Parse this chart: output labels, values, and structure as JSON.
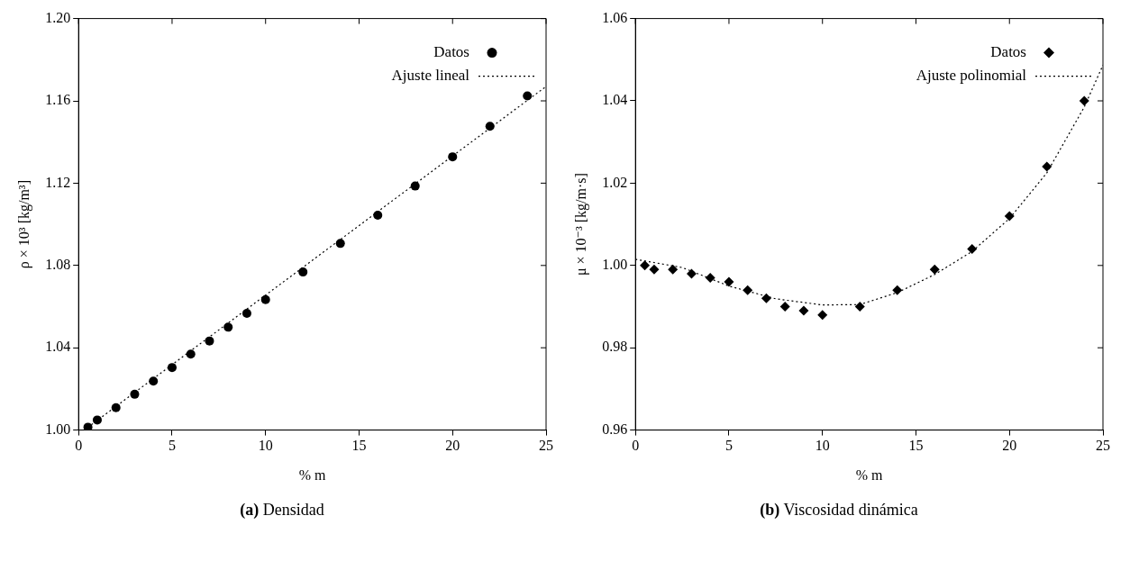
{
  "chart_data": [
    {
      "type": "scatter",
      "title": "(a) Densidad",
      "xlabel": "% m",
      "ylabel": "ρ × 10³ [kg/m³]",
      "xlim": [
        0,
        25
      ],
      "xticks": [
        0,
        5,
        10,
        15,
        20,
        25
      ],
      "ylim": [
        1.0,
        1.2
      ],
      "yticks": [
        {
          "value": 1.0,
          "label": "1.00"
        },
        {
          "value": 1.04,
          "label": "1.04"
        },
        {
          "value": 1.08,
          "label": "1.08"
        },
        {
          "value": 1.12,
          "label": "1.12"
        },
        {
          "value": 1.16,
          "label": "1.16"
        },
        {
          "value": 1.2,
          "label": "1.20"
        }
      ],
      "grid": false,
      "legend": "top right",
      "series": [
        {
          "name": "Datos",
          "type": "scatter",
          "marker": "circle",
          "color": "#000000",
          "x": [
            0.5,
            1,
            2,
            3,
            4,
            5,
            6,
            7,
            8,
            9,
            10,
            12,
            14,
            16,
            18,
            20,
            22,
            24
          ],
          "values": [
            1.0014,
            1.0049,
            1.0109,
            1.0174,
            1.0238,
            1.0304,
            1.0369,
            1.0433,
            1.05,
            1.0567,
            1.0634,
            1.0768,
            1.0907,
            1.1044,
            1.1186,
            1.1328,
            1.1476,
            1.1624
          ]
        },
        {
          "name": "Ajuste lineal",
          "type": "line",
          "marker": "none",
          "line_style": "dotted",
          "color": "#000000",
          "x": [
            0.3,
            25
          ],
          "values": [
            1.0,
            1.167
          ]
        }
      ]
    },
    {
      "type": "scatter",
      "title": "(b) Viscosidad dinámica",
      "xlabel": "% m",
      "ylabel": "μ × 10⁻³ [kg/m·s]",
      "xlim": [
        0,
        25
      ],
      "xticks": [
        0,
        5,
        10,
        15,
        20,
        25
      ],
      "ylim": [
        0.96,
        1.06
      ],
      "yticks": [
        {
          "value": 0.96,
          "label": "0.96"
        },
        {
          "value": 0.98,
          "label": "0.98"
        },
        {
          "value": 1.0,
          "label": "1.00"
        },
        {
          "value": 1.02,
          "label": "1.02"
        },
        {
          "value": 1.04,
          "label": "1.04"
        },
        {
          "value": 1.06,
          "label": "1.06"
        }
      ],
      "grid": false,
      "legend": "top right",
      "series": [
        {
          "name": "Datos",
          "type": "scatter",
          "marker": "diamond",
          "color": "#000000",
          "x": [
            0.5,
            1,
            2,
            3,
            4,
            5,
            6,
            7,
            8,
            9,
            10,
            12,
            14,
            16,
            18,
            20,
            22,
            24
          ],
          "values": [
            1.0,
            0.999,
            0.999,
            0.998,
            0.997,
            0.996,
            0.994,
            0.992,
            0.99,
            0.989,
            0.988,
            0.99,
            0.994,
            0.999,
            1.004,
            1.012,
            1.024,
            1.04
          ]
        },
        {
          "name": "Ajuste polinomial",
          "type": "line",
          "marker": "none",
          "line_style": "dotted",
          "color": "#000000",
          "x": [
            0,
            2.5,
            5,
            7.5,
            10,
            12,
            14,
            16,
            18,
            20,
            22,
            24,
            25
          ],
          "values": [
            1.0015,
            0.9995,
            0.995,
            0.9919,
            0.9904,
            0.9905,
            0.9934,
            0.9978,
            1.0034,
            1.0114,
            1.0225,
            1.0385,
            1.0487
          ]
        }
      ]
    }
  ]
}
